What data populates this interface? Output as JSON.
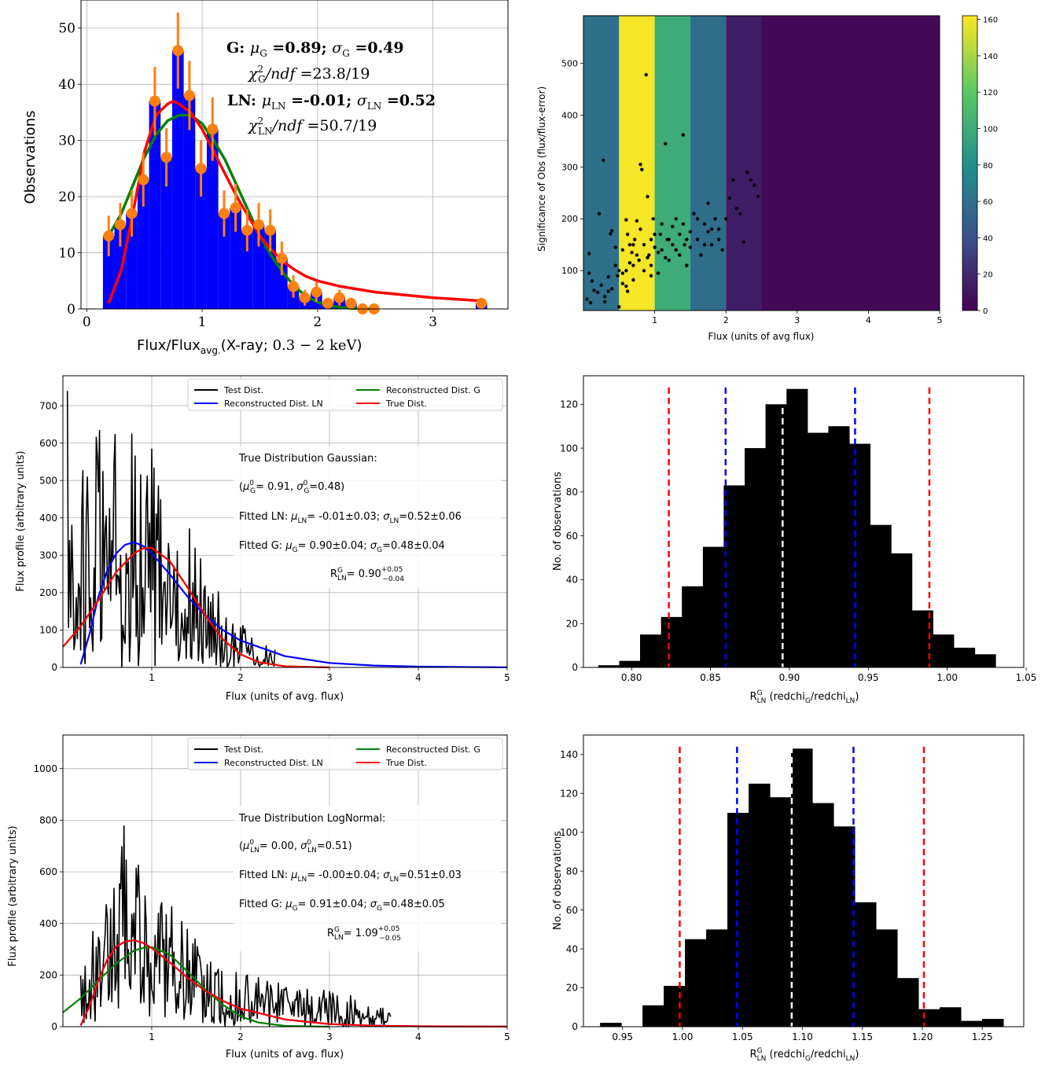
{
  "colors": {
    "blue": "#0000ff",
    "orange": "#ff7f0e",
    "green": "#008000",
    "red": "#ff0000",
    "black": "#000000",
    "white": "#ffffff"
  },
  "chart_data": [
    {
      "type": "bar",
      "id": "p1",
      "xlabel": "Flux/Flux_avg.(X-ray; 0.3 − 2 keV)",
      "ylabel": "Observations",
      "xlim": [
        -0.05,
        3.65
      ],
      "ylim": [
        0,
        55
      ],
      "xticks": [
        0,
        1,
        2,
        3
      ],
      "yticks": [
        0,
        10,
        20,
        30,
        40,
        50
      ],
      "grid": true,
      "bar_width": 0.1,
      "x": [
        0.19,
        0.29,
        0.39,
        0.49,
        0.59,
        0.69,
        0.79,
        0.89,
        0.99,
        1.09,
        1.19,
        1.29,
        1.39,
        1.49,
        1.59,
        1.69,
        1.79,
        1.89,
        1.99,
        2.09,
        2.19,
        2.29,
        2.39,
        2.49,
        3.42
      ],
      "values": [
        13,
        15,
        17,
        23,
        37,
        27,
        46,
        38,
        25,
        32,
        17,
        18,
        14,
        15,
        14,
        9,
        4,
        2,
        3,
        1,
        2,
        1,
        0,
        0,
        1
      ],
      "series": [
        {
          "name": "G fit",
          "color": "#008000",
          "x": [
            0.19,
            0.3,
            0.4,
            0.5,
            0.6,
            0.7,
            0.8,
            0.9,
            1.0,
            1.1,
            1.2,
            1.3,
            1.4,
            1.5,
            1.6,
            1.7,
            1.8,
            1.9,
            2.0,
            2.1,
            2.2,
            2.3,
            2.4,
            2.5
          ],
          "y": [
            13,
            17,
            22,
            27,
            31,
            33.5,
            34.5,
            34.5,
            33,
            30,
            26.5,
            22,
            17.5,
            13,
            9.5,
            6.5,
            4,
            2.3,
            1.2,
            0.6,
            0.25,
            0.1,
            0.04,
            0
          ]
        },
        {
          "name": "LN fit",
          "color": "#ff0000",
          "x": [
            0.19,
            0.3,
            0.4,
            0.5,
            0.6,
            0.7,
            0.75,
            0.8,
            0.9,
            1.0,
            1.1,
            1.2,
            1.3,
            1.4,
            1.5,
            1.6,
            1.7,
            1.8,
            1.9,
            2.0,
            2.2,
            2.5,
            3.0,
            3.45
          ],
          "y": [
            1,
            7,
            17,
            28,
            34.5,
            36.5,
            37,
            36.5,
            35,
            32,
            28,
            24,
            20,
            16.5,
            13,
            10.5,
            8.5,
            7,
            5.8,
            5,
            4,
            3,
            2,
            1.4
          ]
        }
      ],
      "annotations": [
        "G: μ_G =0.89; σ_G =0.49",
        "χ²_G/ndf =23.8/19",
        "LN: μ_LN =-0.01; σ_LN =0.52",
        "χ²_LN/ndf =50.7/19"
      ]
    },
    {
      "type": "heatmap",
      "id": "p2",
      "xlabel": "Flux (units of avg flux)",
      "ylabel": "Significance of Obs (flux/flux-error)",
      "xlim": [
        0,
        5
      ],
      "ylim": [
        23,
        592
      ],
      "xticks": [
        1,
        2,
        3,
        4,
        5
      ],
      "yticks": [
        100,
        200,
        300,
        400,
        500
      ],
      "bin_edges": [
        0,
        0.5,
        1,
        1.5,
        2,
        2.5,
        5
      ],
      "bin_values": [
        60,
        160,
        100,
        58,
        14,
        4
      ],
      "colorbar_ticks": [
        0,
        20,
        40,
        60,
        80,
        100,
        120,
        140,
        160
      ],
      "colorbar_range": [
        0,
        162
      ],
      "points": [
        [
          0.28,
          313
        ],
        [
          0.22,
          210
        ],
        [
          0.08,
          133
        ],
        [
          0.08,
          95
        ],
        [
          0.12,
          80
        ],
        [
          0.15,
          62
        ],
        [
          0.05,
          45
        ],
        [
          0.1,
          38
        ],
        [
          0.2,
          58
        ],
        [
          0.25,
          72
        ],
        [
          0.3,
          50
        ],
        [
          0.35,
          88
        ],
        [
          0.38,
          171
        ],
        [
          0.4,
          177
        ],
        [
          0.45,
          145
        ],
        [
          0.48,
          90
        ],
        [
          0.5,
          30
        ],
        [
          0.55,
          75
        ],
        [
          0.6,
          100
        ],
        [
          0.62,
          60
        ],
        [
          0.65,
          115
        ],
        [
          0.68,
          135
        ],
        [
          0.7,
          82
        ],
        [
          0.72,
          160
        ],
        [
          0.75,
          196
        ],
        [
          0.78,
          120
        ],
        [
          0.8,
          305
        ],
        [
          0.82,
          295
        ],
        [
          0.85,
          150
        ],
        [
          0.88,
          478
        ],
        [
          0.9,
          243
        ],
        [
          0.92,
          130
        ],
        [
          0.95,
          110
        ],
        [
          0.98,
          200
        ],
        [
          1.0,
          145
        ],
        [
          1.05,
          95
        ],
        [
          1.08,
          170
        ],
        [
          1.1,
          140
        ],
        [
          1.15,
          345
        ],
        [
          1.18,
          160
        ],
        [
          1.2,
          120
        ],
        [
          1.25,
          185
        ],
        [
          1.3,
          200
        ],
        [
          1.35,
          130
        ],
        [
          1.4,
          362
        ],
        [
          1.42,
          150
        ],
        [
          1.45,
          110
        ],
        [
          1.5,
          175
        ],
        [
          1.55,
          210
        ],
        [
          1.6,
          160
        ],
        [
          1.65,
          130
        ],
        [
          1.7,
          190
        ],
        [
          1.75,
          230
        ],
        [
          1.8,
          150
        ],
        [
          1.85,
          200
        ],
        [
          1.9,
          180
        ],
        [
          1.95,
          140
        ],
        [
          2.0,
          200
        ],
        [
          2.05,
          240
        ],
        [
          2.1,
          275
        ],
        [
          2.15,
          220
        ],
        [
          2.2,
          210
        ],
        [
          2.25,
          155
        ],
        [
          2.3,
          290
        ],
        [
          2.35,
          275
        ],
        [
          2.4,
          265
        ],
        [
          2.45,
          243
        ],
        [
          0.35,
          60
        ],
        [
          0.45,
          110
        ],
        [
          0.55,
          95
        ],
        [
          0.6,
          70
        ],
        [
          0.7,
          150
        ],
        [
          0.85,
          100
        ],
        [
          0.95,
          90
        ],
        [
          1.1,
          190
        ],
        [
          1.2,
          160
        ],
        [
          1.3,
          140
        ],
        [
          1.6,
          200
        ],
        [
          1.7,
          150
        ],
        [
          0.55,
          140
        ],
        [
          0.65,
          150
        ],
        [
          0.75,
          130
        ],
        [
          0.6,
          198
        ],
        [
          0.8,
          180
        ],
        [
          1.0,
          170
        ],
        [
          1.25,
          150
        ],
        [
          1.45,
          160
        ],
        [
          1.9,
          160
        ],
        [
          0.4,
          65
        ],
        [
          0.5,
          100
        ],
        [
          0.9,
          125
        ],
        [
          1.05,
          135
        ],
        [
          1.15,
          125
        ],
        [
          1.35,
          170
        ],
        [
          1.5,
          145
        ],
        [
          1.75,
          175
        ],
        [
          0.3,
          40
        ],
        [
          0.7,
          110
        ],
        [
          0.95,
          160
        ],
        [
          1.4,
          190
        ],
        [
          1.8,
          180
        ],
        [
          0.62,
          170
        ]
      ]
    },
    {
      "type": "line",
      "id": "p3",
      "xlabel": "Flux (units of avg. flux)",
      "ylabel": "Flux profile (arbitrary units)",
      "xlim": [
        0,
        5
      ],
      "ylim": [
        0,
        780
      ],
      "xticks": [
        1,
        2,
        3,
        4,
        5
      ],
      "yticks": [
        0,
        100,
        200,
        300,
        400,
        500,
        600,
        700
      ],
      "legend": [
        "Test Dist.",
        "Reconstructed Dist. G",
        "Reconstructed Dist. LN",
        "True Dist."
      ],
      "legend_position": "top-right",
      "series": [
        {
          "name": "Reconstructed Dist. G",
          "color": "#008000",
          "x": [
            0,
            0.2,
            0.4,
            0.6,
            0.8,
            0.9,
            1.0,
            1.2,
            1.4,
            1.6,
            1.8,
            2.0,
            2.2,
            2.5,
            3.0
          ],
          "y": [
            55,
            110,
            180,
            255,
            305,
            318,
            320,
            285,
            215,
            140,
            75,
            35,
            14,
            3,
            0
          ]
        },
        {
          "name": "Reconstructed Dist. LN",
          "color": "#0000ff",
          "x": [
            0.2,
            0.3,
            0.4,
            0.5,
            0.6,
            0.7,
            0.8,
            0.9,
            1.0,
            1.2,
            1.4,
            1.6,
            1.8,
            2.0,
            2.5,
            3.0,
            3.5,
            4.0,
            5.0
          ],
          "y": [
            8,
            90,
            190,
            260,
            305,
            328,
            335,
            325,
            305,
            250,
            190,
            140,
            100,
            72,
            30,
            12,
            5,
            2,
            0.3
          ]
        },
        {
          "name": "True Dist.",
          "color": "#ff0000",
          "x": [
            0,
            0.2,
            0.4,
            0.6,
            0.8,
            0.9,
            1.0,
            1.2,
            1.4,
            1.6,
            1.8,
            2.0,
            2.2,
            2.5,
            3.0
          ],
          "y": [
            55,
            110,
            180,
            255,
            305,
            318,
            320,
            285,
            215,
            140,
            75,
            35,
            14,
            3,
            0
          ]
        }
      ],
      "test_dist_envelope": {
        "x": [
          0.05,
          0.4,
          0.8,
          1.2,
          1.6,
          2.0,
          2.4
        ],
        "y": [
          780,
          640,
          780,
          500,
          280,
          120,
          60
        ]
      },
      "annotations": [
        "True Distribution Gaussian:",
        "(μ⁰_G= 0.91, σ⁰_G=0.48)",
        "Fitted LN: μ_LN= -0.01±0.03; σ_LN=0.52±0.06",
        "Fitted G: μ_G= 0.90±0.04; σ_G=0.48±0.04",
        "R^G_LN= 0.90 +0.05 −0.04"
      ]
    },
    {
      "type": "bar",
      "id": "p4",
      "xlabel": "R^G_LN (redchi_G/redchi_LN)",
      "ylabel": "No. of observations",
      "xlim": [
        0.7695,
        1.0485
      ],
      "ylim": [
        0,
        133
      ],
      "xticks": [
        0.8,
        0.85,
        0.9,
        0.95,
        1.0,
        1.05
      ],
      "yticks": [
        0,
        20,
        40,
        60,
        80,
        100,
        120
      ],
      "bin_width": 0.01325,
      "x": [
        0.7855,
        0.7988,
        0.812,
        0.8253,
        0.8385,
        0.8518,
        0.865,
        0.8783,
        0.8915,
        0.9048,
        0.918,
        0.9313,
        0.9445,
        0.9578,
        0.971,
        0.9843,
        0.9975,
        1.0108,
        1.024
      ],
      "values": [
        1,
        3,
        15,
        23,
        37,
        55,
        83,
        100,
        120,
        127,
        107,
        110,
        102,
        65,
        52,
        26,
        15,
        9,
        6
      ],
      "vlines": [
        {
          "x": 0.8236,
          "color": "#ff0000"
        },
        {
          "x": 0.8596,
          "color": "#0000ff"
        },
        {
          "x": 0.8957,
          "color": "#ffffff"
        },
        {
          "x": 0.9416,
          "color": "#0000ff"
        },
        {
          "x": 0.9887,
          "color": "#ff0000"
        }
      ]
    },
    {
      "type": "line",
      "id": "p5",
      "xlabel": "Flux (units of avg. flux)",
      "ylabel": "Flux profile (arbitrary units)",
      "xlim": [
        0,
        5
      ],
      "ylim": [
        0,
        1130
      ],
      "xticks": [
        1,
        2,
        3,
        4,
        5
      ],
      "yticks": [
        0,
        200,
        400,
        600,
        800,
        1000
      ],
      "legend": [
        "Test Dist.",
        "Reconstructed Dist. G",
        "Reconstructed Dist. LN",
        "True Dist."
      ],
      "legend_position": "top-right",
      "series": [
        {
          "name": "Reconstructed Dist. G",
          "color": "#008000",
          "x": [
            0,
            0.2,
            0.4,
            0.6,
            0.8,
            0.9,
            1.0,
            1.2,
            1.4,
            1.6,
            1.8,
            2.0,
            2.2,
            2.5,
            3.0
          ],
          "y": [
            55,
            110,
            180,
            245,
            295,
            305,
            308,
            280,
            215,
            145,
            85,
            40,
            16,
            3,
            0
          ]
        },
        {
          "name": "Reconstructed Dist. LN",
          "color": "#0000ff",
          "x": [
            0.2,
            0.3,
            0.4,
            0.5,
            0.6,
            0.7,
            0.8,
            0.9,
            1.0,
            1.2,
            1.4,
            1.6,
            1.8,
            2.0,
            2.5,
            3.0,
            3.5,
            4.0,
            5.0
          ],
          "y": [
            5,
            80,
            180,
            260,
            310,
            330,
            335,
            325,
            305,
            250,
            190,
            140,
            100,
            70,
            28,
            10,
            4,
            1.5,
            0.2
          ]
        },
        {
          "name": "True Dist.",
          "color": "#ff0000",
          "x": [
            0.2,
            0.3,
            0.4,
            0.5,
            0.6,
            0.7,
            0.8,
            0.9,
            1.0,
            1.2,
            1.4,
            1.6,
            1.8,
            2.0,
            2.5,
            3.0,
            3.5,
            4.0,
            5.0
          ],
          "y": [
            5,
            80,
            180,
            260,
            310,
            330,
            335,
            325,
            305,
            250,
            190,
            140,
            100,
            70,
            28,
            10,
            4,
            1.5,
            0.2
          ]
        }
      ],
      "test_dist_envelope": {
        "x": [
          0.2,
          0.5,
          0.8,
          1.0,
          1.3,
          1.6,
          2.0,
          2.5,
          3.0,
          3.5,
          3.7
        ],
        "y": [
          200,
          620,
          880,
          560,
          480,
          260,
          220,
          160,
          140,
          100,
          50
        ]
      },
      "annotations": [
        "True Distribution LogNormal:",
        "(μ⁰_LN= 0.00, σ⁰_LN=0.51)",
        "Fitted LN: μ_LN= -0.00±0.04; σ_LN=0.51±0.03",
        "Fitted G: μ_G= 0.91±0.04; σ_G=0.48±0.05",
        "R^G_LN= 1.09 +0.05 −0.05"
      ]
    },
    {
      "type": "bar",
      "id": "p6",
      "xlabel": "R^G_LN (redchi_G/redchi_LN)",
      "ylabel": "No. of observations",
      "xlim": [
        0.9174,
        1.2846
      ],
      "ylim": [
        0,
        150
      ],
      "xticks": [
        0.95,
        1.0,
        1.05,
        1.1,
        1.15,
        1.2,
        1.25
      ],
      "yticks": [
        0,
        20,
        40,
        60,
        80,
        100,
        120,
        140
      ],
      "bin_width": 0.0177,
      "x": [
        0.9401,
        0.9578,
        0.9755,
        0.9932,
        1.0109,
        1.0286,
        1.0463,
        1.064,
        1.0817,
        1.0994,
        1.1171,
        1.1348,
        1.1525,
        1.1702,
        1.1879,
        1.2056,
        1.2233,
        1.241,
        1.2587
      ],
      "values": [
        2,
        0,
        11,
        21,
        45,
        50,
        110,
        125,
        118,
        143,
        115,
        103,
        64,
        50,
        25,
        9,
        10,
        3,
        4
      ],
      "vlines": [
        {
          "x": 0.9977,
          "color": "#ff0000"
        },
        {
          "x": 1.0455,
          "color": "#0000ff"
        },
        {
          "x": 1.0911,
          "color": "#ffffff"
        },
        {
          "x": 1.1426,
          "color": "#0000ff"
        },
        {
          "x": 1.2013,
          "color": "#ff0000"
        }
      ]
    }
  ]
}
